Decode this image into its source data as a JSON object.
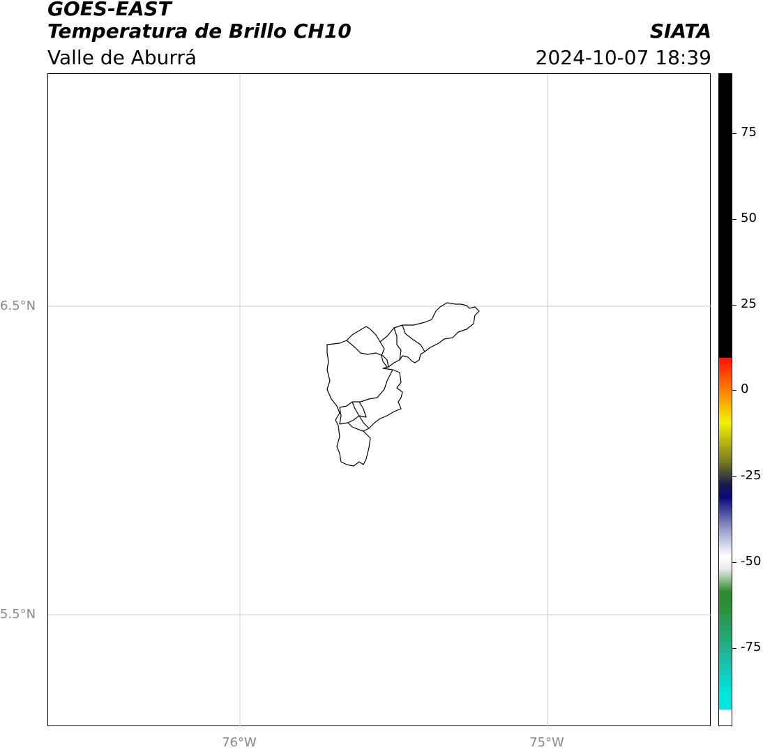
{
  "header": {
    "satellite": "GOES-EAST",
    "product": "Temperatura de Brillo CH10",
    "region": "Valle de Aburrá",
    "agency": "SIATA",
    "datetime": "2024-10-07 18:39"
  },
  "map": {
    "lat_labels": [
      "6.5°N",
      "5.5°N"
    ],
    "lon_labels": [
      "76°W",
      "75°W"
    ],
    "gridline_color": "#c8c8c8",
    "boundary_color": "#000000",
    "features": [
      "municipality-boundaries"
    ]
  },
  "colorbar": {
    "ticks": [
      "75",
      "50",
      "25",
      "0",
      "-25",
      "-50",
      "-75"
    ],
    "colors": {
      "white": "#ffffff",
      "cyan": "#00e5e0",
      "teal": "#1fb59a",
      "green": "#2e8a2e",
      "light_grey": "#e8ece6",
      "navy": "#0a0a7a",
      "olive": "#7a7a20",
      "yellow": "#f2f200",
      "orange": "#ff8a00",
      "red": "#ff1a00",
      "black": "#000000"
    }
  }
}
